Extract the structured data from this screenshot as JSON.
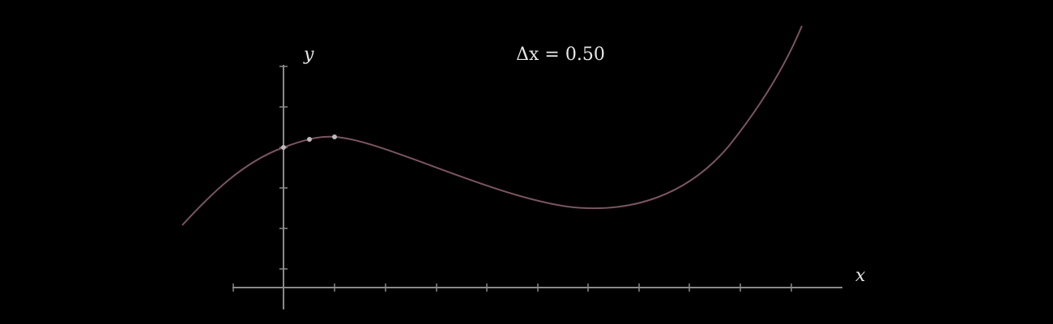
{
  "axes": {
    "y_label": "y",
    "x_label": "x"
  },
  "annotation": "Δx = 0.50"
}
